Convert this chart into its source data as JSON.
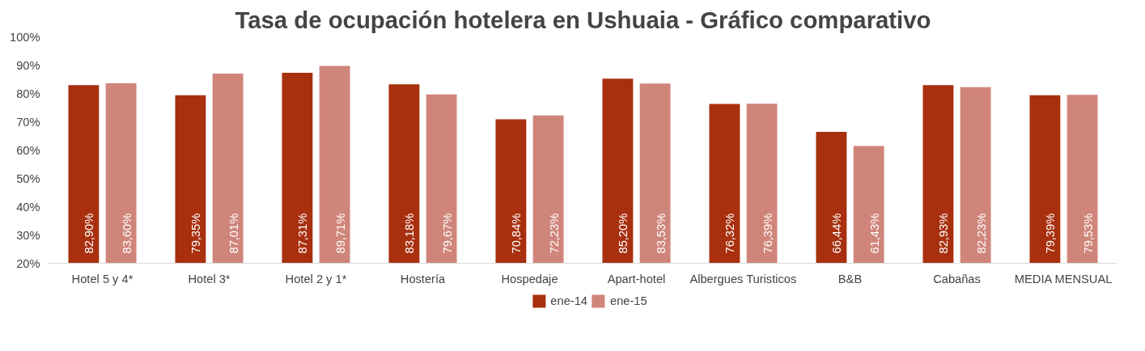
{
  "chart_data": {
    "type": "bar",
    "title": "Tasa de ocupación hotelera en Ushuaia - Gráfico comparativo",
    "categories": [
      "Hotel 5 y 4*",
      "Hotel 3*",
      "Hotel 2 y 1*",
      "Hostería",
      "Hospedaje",
      "Apart-hotel",
      "Albergues Turisticos",
      "B&B",
      "Cabañas",
      "MEDIA MENSUAL"
    ],
    "series": [
      {
        "name": "ene-14",
        "color": "#a8300f",
        "values": [
          82.9,
          79.35,
          87.31,
          83.18,
          70.84,
          85.2,
          76.32,
          66.44,
          82.93,
          79.39
        ],
        "value_labels": [
          "82,90%",
          "79,35%",
          "87,31%",
          "83,18%",
          "70,84%",
          "85,20%",
          "76,32%",
          "66,44%",
          "82,93%",
          "79,39%"
        ]
      },
      {
        "name": "ene-15",
        "color": "#d0857a",
        "values": [
          83.6,
          87.01,
          89.71,
          79.67,
          72.23,
          83.53,
          76.39,
          61.43,
          82.23,
          79.53
        ],
        "value_labels": [
          "83,60%",
          "87,01%",
          "89,71%",
          "79,67%",
          "72,23%",
          "83,53%",
          "76,39%",
          "61,43%",
          "82,23%",
          "79,53%"
        ]
      }
    ],
    "ylim": [
      20,
      100
    ],
    "yticks": [
      {
        "value": 20,
        "label": "20%"
      },
      {
        "value": 30,
        "label": "30%"
      },
      {
        "value": 40,
        "label": "40%"
      },
      {
        "value": 50,
        "label": "50%"
      },
      {
        "value": 60,
        "label": "60%"
      },
      {
        "value": 70,
        "label": "70%"
      },
      {
        "value": 80,
        "label": "80%"
      },
      {
        "value": 90,
        "label": "90%"
      },
      {
        "value": 100,
        "label": "100%"
      }
    ],
    "grid": false,
    "legend": "bottom"
  }
}
